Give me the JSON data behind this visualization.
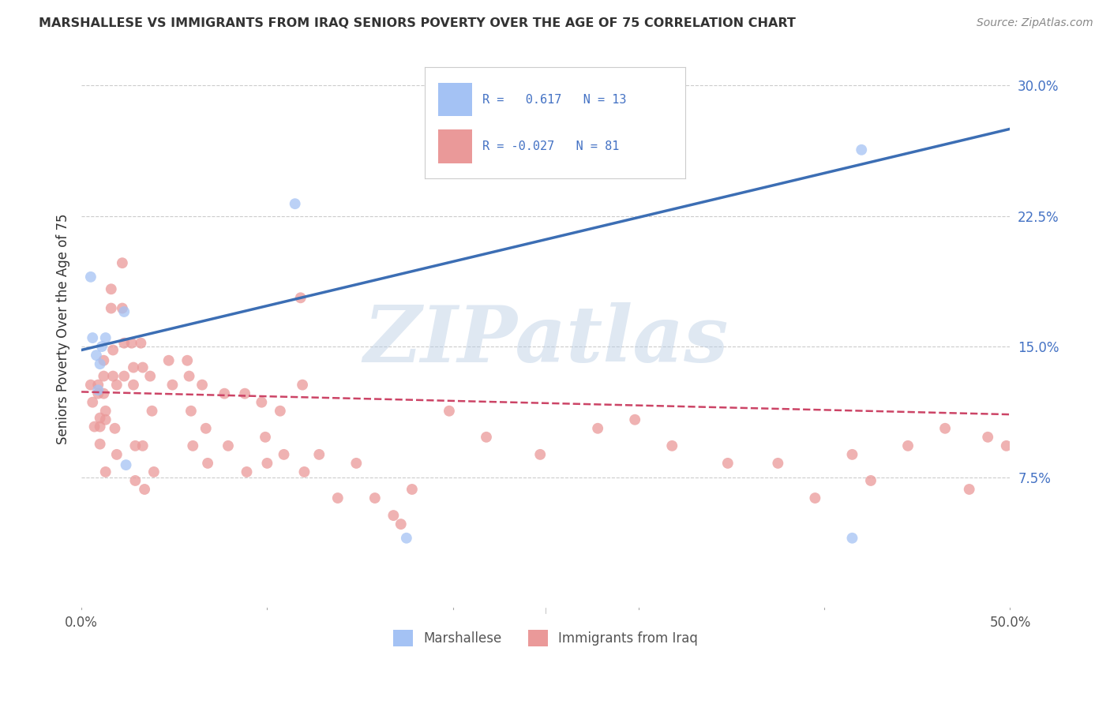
{
  "title": "MARSHALLESE VS IMMIGRANTS FROM IRAQ SENIORS POVERTY OVER THE AGE OF 75 CORRELATION CHART",
  "source": "Source: ZipAtlas.com",
  "ylabel": "Seniors Poverty Over the Age of 75",
  "xlim": [
    0.0,
    0.5
  ],
  "ylim": [
    0.0,
    0.32
  ],
  "blue_R": "0.617",
  "blue_N": "13",
  "pink_R": "-0.027",
  "pink_N": "81",
  "blue_color": "#a4c2f4",
  "pink_color": "#ea9999",
  "blue_line_color": "#3c6eb4",
  "pink_line_color": "#cc4466",
  "grid_color": "#cccccc",
  "blue_scatter_x": [
    0.005,
    0.006,
    0.008,
    0.009,
    0.01,
    0.011,
    0.013,
    0.023,
    0.024,
    0.115,
    0.175,
    0.415,
    0.42
  ],
  "blue_scatter_y": [
    0.19,
    0.155,
    0.145,
    0.125,
    0.14,
    0.15,
    0.155,
    0.17,
    0.082,
    0.232,
    0.04,
    0.04,
    0.263
  ],
  "pink_scatter_x": [
    0.005,
    0.006,
    0.007,
    0.009,
    0.009,
    0.01,
    0.01,
    0.01,
    0.012,
    0.012,
    0.012,
    0.013,
    0.013,
    0.013,
    0.016,
    0.016,
    0.017,
    0.017,
    0.018,
    0.019,
    0.019,
    0.022,
    0.022,
    0.023,
    0.023,
    0.027,
    0.028,
    0.028,
    0.029,
    0.029,
    0.032,
    0.033,
    0.033,
    0.034,
    0.037,
    0.038,
    0.039,
    0.047,
    0.049,
    0.057,
    0.058,
    0.059,
    0.06,
    0.065,
    0.067,
    0.068,
    0.077,
    0.079,
    0.088,
    0.089,
    0.097,
    0.099,
    0.1,
    0.107,
    0.109,
    0.118,
    0.119,
    0.12,
    0.128,
    0.138,
    0.148,
    0.158,
    0.168,
    0.172,
    0.178,
    0.198,
    0.218,
    0.247,
    0.278,
    0.298,
    0.318,
    0.348,
    0.375,
    0.395,
    0.415,
    0.425,
    0.445,
    0.465,
    0.478,
    0.488,
    0.498
  ],
  "pink_scatter_y": [
    0.128,
    0.118,
    0.104,
    0.128,
    0.123,
    0.109,
    0.104,
    0.094,
    0.142,
    0.133,
    0.123,
    0.113,
    0.108,
    0.078,
    0.183,
    0.172,
    0.148,
    0.133,
    0.103,
    0.128,
    0.088,
    0.198,
    0.172,
    0.152,
    0.133,
    0.152,
    0.138,
    0.128,
    0.093,
    0.073,
    0.152,
    0.138,
    0.093,
    0.068,
    0.133,
    0.113,
    0.078,
    0.142,
    0.128,
    0.142,
    0.133,
    0.113,
    0.093,
    0.128,
    0.103,
    0.083,
    0.123,
    0.093,
    0.123,
    0.078,
    0.118,
    0.098,
    0.083,
    0.113,
    0.088,
    0.178,
    0.128,
    0.078,
    0.088,
    0.063,
    0.083,
    0.063,
    0.053,
    0.048,
    0.068,
    0.113,
    0.098,
    0.088,
    0.103,
    0.108,
    0.093,
    0.083,
    0.083,
    0.063,
    0.088,
    0.073,
    0.093,
    0.103,
    0.068,
    0.098,
    0.093
  ],
  "blue_line_y_start": 0.148,
  "blue_line_y_end": 0.275,
  "pink_line_y_start": 0.124,
  "pink_line_y_end": 0.111,
  "background_color": "#ffffff",
  "watermark_text": "ZIPatlas",
  "legend_label1": "Marshallese",
  "legend_label2": "Immigrants from Iraq"
}
